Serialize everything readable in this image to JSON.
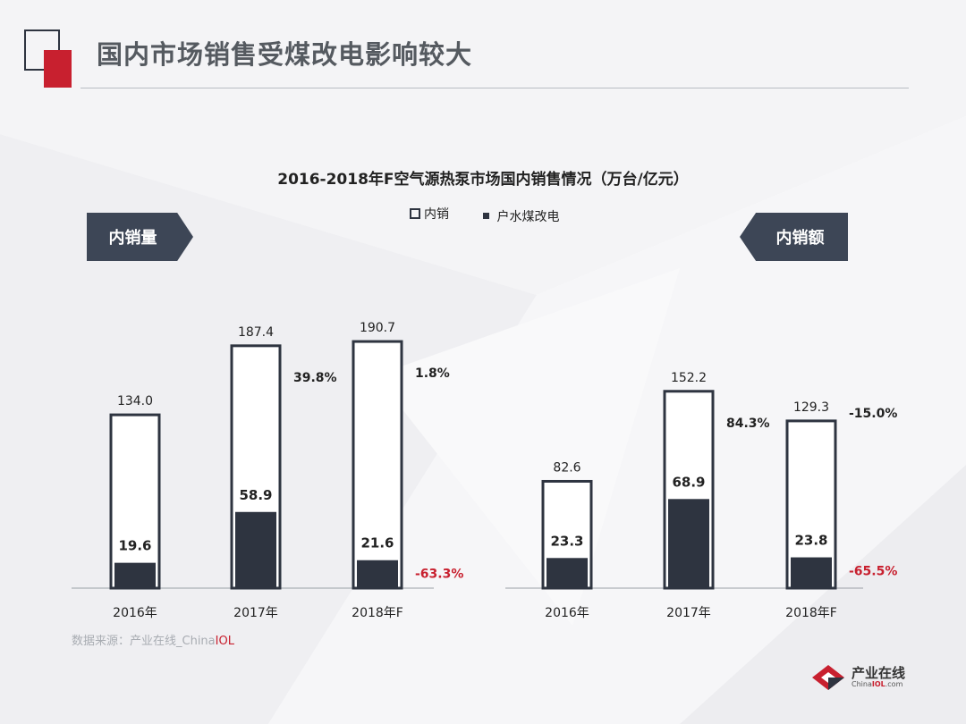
{
  "page": {
    "title": "国内市场销售受煤改电影响较大",
    "source_prefix": "数据来源：产业在线_China",
    "source_highlight": "IOL",
    "logo_name": "产业在线",
    "logo_sub_prefix": "China",
    "logo_sub_highlight": "IOL",
    "logo_sub_suffix": ".com",
    "colors": {
      "dark": "#2e3440",
      "accent_red": "#c8202f",
      "tag_bg": "#3d4656"
    }
  },
  "chart_title": "2016-2018年F空气源热泵市场国内销售情况（万台/亿元）",
  "legend": {
    "outline_label": "内销",
    "filled_label": "户水煤改电"
  },
  "tags": {
    "left": "内销量",
    "right": "内销额"
  },
  "chart_data": [
    {
      "type": "bar",
      "panel": "内销量",
      "categories": [
        "2016年",
        "2017年",
        "2018年F"
      ],
      "series": [
        {
          "name": "内销",
          "values": [
            134.0,
            187.4,
            190.7
          ],
          "value_labels": [
            "134.0",
            "187.4",
            "190.7"
          ]
        },
        {
          "name": "户水煤改电",
          "values": [
            19.6,
            58.9,
            21.6
          ],
          "value_labels": [
            "19.6",
            "58.9",
            "21.6"
          ]
        }
      ],
      "growth_total": [
        "39.8%",
        "1.8%"
      ],
      "growth_coal": [
        "-63.3%"
      ],
      "ylim": [
        0,
        200
      ]
    },
    {
      "type": "bar",
      "panel": "内销额",
      "categories": [
        "2016年",
        "2017年",
        "2018年F"
      ],
      "series": [
        {
          "name": "内销",
          "values": [
            82.6,
            152.2,
            129.3
          ],
          "value_labels": [
            "82.6",
            "152.2",
            "129.3"
          ]
        },
        {
          "name": "户水煤改电",
          "values": [
            23.3,
            68.9,
            23.8
          ],
          "value_labels": [
            "23.3",
            "68.9",
            "23.8"
          ]
        }
      ],
      "growth_total": [
        "84.3%",
        "-15.0%"
      ],
      "growth_coal": [
        "-65.5%"
      ],
      "ylim": [
        0,
        200
      ]
    }
  ]
}
